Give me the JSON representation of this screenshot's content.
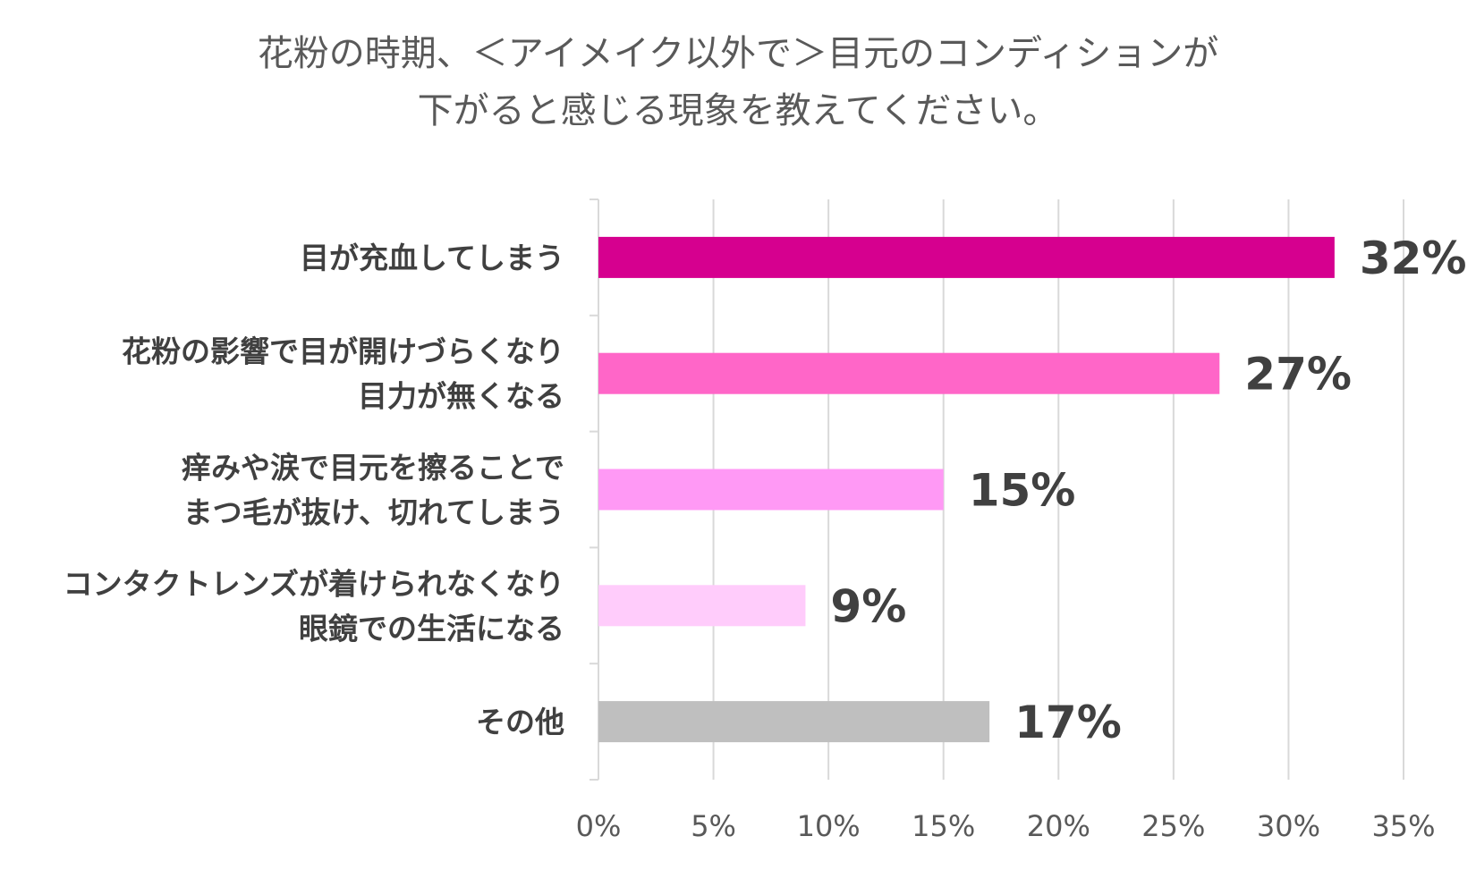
{
  "chart_data": {
    "type": "bar",
    "orientation": "horizontal",
    "title_lines": [
      "花粉の時期、＜アイメイク以外で＞目元のコンディションが",
      "下がると感じる現象を教えてください。"
    ],
    "categories": [
      [
        "目が充血してしまう"
      ],
      [
        "花粉の影響で目が開けづらくなり",
        "目力が無くなる"
      ],
      [
        "痒みや涙で目元を擦ることで",
        "まつ毛が抜け、切れてしまう"
      ],
      [
        "コンタクトレンズが着けられなくなり",
        "眼鏡での生活になる"
      ],
      [
        "その他"
      ]
    ],
    "values": [
      32,
      27,
      15,
      9,
      17
    ],
    "value_labels": [
      "32%",
      "27%",
      "15%",
      "9%",
      "17%"
    ],
    "colors": [
      "#D6008F",
      "#FF66C8",
      "#FF99F5",
      "#FFCCFB",
      "#BFBFBF"
    ],
    "xlim": [
      0,
      35
    ],
    "xticks": [
      0,
      5,
      10,
      15,
      20,
      25,
      30,
      35
    ],
    "xtick_labels": [
      "0%",
      "5%",
      "10%",
      "15%",
      "20%",
      "25%",
      "30%",
      "35%"
    ],
    "grid": true,
    "legend": "none"
  }
}
